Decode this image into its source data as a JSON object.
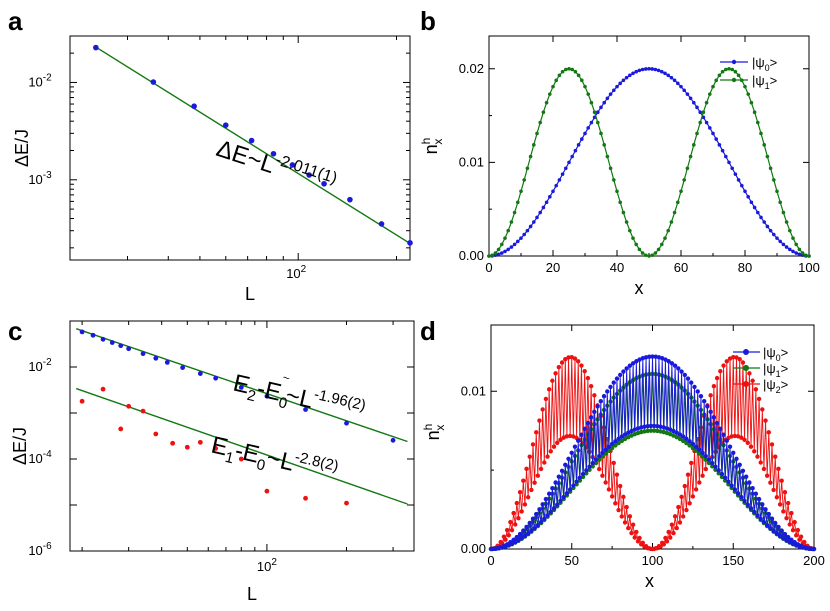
{
  "chart_data": [
    {
      "panel": "a",
      "type": "scatter",
      "xscale": "log",
      "yscale": "log",
      "xlabel": "L",
      "ylabel": "ΔE/J",
      "xlim": [
        20,
        220
      ],
      "ylim": [
        0.00015,
        0.03
      ],
      "x_ticks": [
        {
          "value": 100,
          "label": "10",
          "exp": "2"
        }
      ],
      "y_ticks": [
        {
          "value": 0.01,
          "label": "10",
          "exp": "-2"
        },
        {
          "value": 0.001,
          "label": "10",
          "exp": "-3"
        }
      ],
      "series": [
        {
          "role": "data",
          "color": "#1a1adc",
          "x": [
            24,
            36,
            48,
            60,
            72,
            84,
            96,
            108,
            120,
            144,
            180,
            220
          ],
          "y": [
            0.0228,
            0.0101,
            0.0057,
            0.00364,
            0.00253,
            0.00185,
            0.00142,
            0.00112,
            0.00091,
            0.000625,
            0.000352,
            0.000225
          ]
        },
        {
          "role": "fit",
          "color": "#127812",
          "x": [
            24,
            220
          ],
          "y": [
            0.0231,
            0.000222
          ]
        }
      ],
      "annotation": {
        "base": "ΔE~L",
        "sup": "-2.011(1)"
      }
    },
    {
      "panel": "b",
      "type": "line",
      "xlabel": "x",
      "ylabel": {
        "main": "n",
        "sup": "h",
        "sub": "x"
      },
      "xlim": [
        0,
        100
      ],
      "ylim": [
        0,
        0.0235
      ],
      "x_ticks": [
        0,
        20,
        40,
        60,
        80,
        100
      ],
      "y_ticks": [
        {
          "value": 0,
          "label": "0.00"
        },
        {
          "value": 0.01,
          "label": "0.01"
        },
        {
          "value": 0.02,
          "label": "0.02"
        }
      ],
      "series": [
        {
          "color": "#1a1adc",
          "legend": {
            "pre": "|ψ",
            "sub": "0",
            "post": ">"
          },
          "shape": "sin1",
          "amplitude": 0.02,
          "n_points": 101
        },
        {
          "color": "#127812",
          "legend": {
            "pre": "|ψ",
            "sub": "1",
            "post": ">"
          },
          "shape": "sin2",
          "amplitude": 0.02,
          "n_points": 101
        }
      ],
      "legend_position": "top-right"
    },
    {
      "panel": "c",
      "type": "scatter",
      "xscale": "log",
      "yscale": "log",
      "xlabel": "L",
      "ylabel": "ΔE/J",
      "xlim": [
        18,
        360
      ],
      "ylim": [
        1e-06,
        0.1
      ],
      "x_ticks": [
        {
          "value": 100,
          "label": "10",
          "exp": "2"
        }
      ],
      "y_ticks": [
        {
          "value": 0.01,
          "label": "10",
          "exp": "-2"
        },
        {
          "value": 0.0001,
          "label": "10",
          "exp": "-4"
        },
        {
          "value": 1e-06,
          "label": "10",
          "exp": "-6"
        }
      ],
      "series": [
        {
          "role": "data",
          "color": "#1a1adc",
          "x": [
            20,
            22,
            24,
            26,
            28,
            30,
            34,
            38,
            42,
            48,
            56,
            64,
            80,
            100,
            140,
            200,
            300
          ],
          "y": [
            0.058,
            0.049,
            0.04,
            0.034,
            0.029,
            0.025,
            0.0195,
            0.0155,
            0.0126,
            0.0097,
            0.0072,
            0.0057,
            0.0036,
            0.00232,
            0.00119,
            0.0006,
            0.000255
          ]
        },
        {
          "role": "fit",
          "color": "#127812",
          "x": [
            19,
            340
          ],
          "y": [
            0.068,
            0.00024
          ]
        },
        {
          "role": "data",
          "color": "#ee1111",
          "x": [
            20,
            24,
            28,
            30,
            34,
            38,
            44,
            50,
            56,
            64,
            80,
            100,
            140,
            200
          ],
          "y": [
            0.0018,
            0.0033,
            0.00045,
            0.0014,
            0.0011,
            0.00035,
            0.00022,
            0.00018,
            0.00023,
            0.00017,
            0.0001,
            2e-05,
            1.4e-05,
            1.1e-05
          ]
        },
        {
          "role": "fit",
          "color": "#127812",
          "x": [
            19,
            340
          ],
          "y": [
            0.0034,
            1.05e-05
          ]
        }
      ],
      "annotations": [
        {
          "pos": "upper",
          "parts": [
            [
              "E",
              ""
            ],
            [
              "2",
              "sub"
            ],
            [
              "-E",
              ""
            ],
            [
              "0",
              "sub"
            ],
            [
              "~",
              "tilde"
            ],
            [
              "~L",
              ""
            ],
            [
              "-1.96(2)",
              "sup"
            ]
          ]
        },
        {
          "pos": "lower",
          "parts": [
            [
              "E",
              ""
            ],
            [
              "1",
              "sub"
            ],
            [
              "-E",
              ""
            ],
            [
              "0",
              "sub"
            ],
            [
              "~L",
              ""
            ],
            [
              "-2.8(2)",
              "sup"
            ]
          ]
        }
      ]
    },
    {
      "panel": "d",
      "type": "line",
      "xlabel": "x",
      "ylabel": {
        "main": "n",
        "sup": "h",
        "sub": "x"
      },
      "xlim": [
        0,
        200
      ],
      "ylim": [
        0,
        0.0142
      ],
      "x_ticks": [
        0,
        50,
        100,
        150,
        200
      ],
      "y_ticks": [
        {
          "value": 0,
          "label": "0.00"
        },
        {
          "value": 0.01,
          "label": "0.01"
        }
      ],
      "series": [
        {
          "color": "#1a1adc",
          "legend": {
            "pre": "|ψ",
            "sub": "0",
            "post": ">"
          },
          "shape": "osc_ground",
          "amplitude": 0.01,
          "osc": 0.0022,
          "n_points": 201
        },
        {
          "color": "#127812",
          "legend": {
            "pre": "|ψ",
            "sub": "1",
            "post": ">"
          },
          "shape": "osc_ground",
          "amplitude": 0.0093,
          "osc": 0.0018,
          "n_points": 201
        },
        {
          "color": "#ee1111",
          "legend": {
            "pre": "|ψ",
            "sub": "2",
            "post": ">"
          },
          "shape": "osc_excited",
          "amplitude": 0.0101,
          "osc": 0.0025,
          "n_points": 201
        }
      ],
      "legend_position": "top-right"
    }
  ],
  "panel_letters": [
    "a",
    "b",
    "c",
    "d"
  ]
}
